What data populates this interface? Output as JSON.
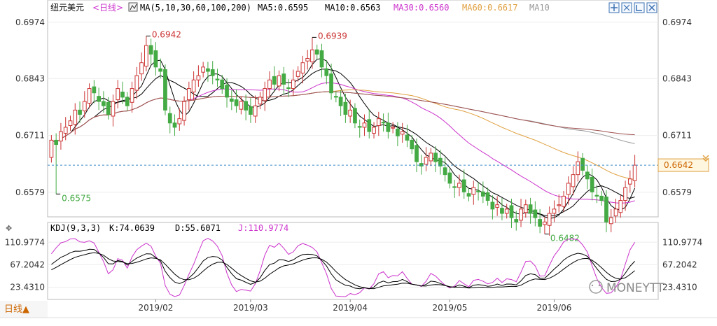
{
  "header": {
    "instrument": "纽元美元",
    "period": "<日线>",
    "ma_indicator": "MA(5,10,30,60,100,200)",
    "ma5": "MA5:0.6595",
    "ma10": "MA10:0.6563",
    "ma30": "MA30:0.6560",
    "ma60": "MA60:0.6617",
    "ma100": "MA10",
    "colors": {
      "ma5": "#000000",
      "ma10": "#000000",
      "ma30": "#cc33cc",
      "ma60": "#e0a040",
      "ma100": "#999999",
      "ma200": "#a05050"
    }
  },
  "toolbar": {
    "icons": [
      "move-icon",
      "zoom-in-icon",
      "zoom-out-icon",
      "close-icon"
    ]
  },
  "kdj_header": {
    "indicator": "KDJ(9,3,3)",
    "k": "K:74.0639",
    "d": "D:55.6071",
    "j": "J:110.9774"
  },
  "footer": {
    "period_button": "日线▲",
    "watermark": "MONEYTT"
  },
  "chart_data": [
    {
      "type": "candlestick",
      "ylim": [
        0.653,
        0.699
      ],
      "y_ticks_left": [
        "0.6974",
        "0.6843",
        "0.6711",
        "0.6579"
      ],
      "y_ticks_right": [
        "0.6974",
        "0.6843",
        "0.6711",
        "0.6579"
      ],
      "current_price_label": "0.6642",
      "current_price": 0.6642,
      "annotations": [
        {
          "text": "0.6942",
          "value": 0.6942,
          "bar": 20,
          "color": "#cc3333"
        },
        {
          "text": "0.6939",
          "value": 0.6939,
          "bar": 55,
          "color": "#cc3333"
        },
        {
          "text": "0.6575",
          "value": 0.6575,
          "bar": 1,
          "color": "#44aa44"
        },
        {
          "text": "0.6482",
          "value": 0.6482,
          "bar": 104,
          "color": "#44aa44"
        }
      ],
      "x_labels": [
        {
          "text": "2019/02",
          "bar": 22
        },
        {
          "text": "2019/03",
          "bar": 42
        },
        {
          "text": "2019/04",
          "bar": 63
        },
        {
          "text": "2019/05",
          "bar": 84
        },
        {
          "text": "2019/06",
          "bar": 106
        }
      ],
      "close": [
        0.67,
        0.669,
        0.672,
        0.673,
        0.6745,
        0.677,
        0.676,
        0.679,
        0.682,
        0.681,
        0.679,
        0.678,
        0.676,
        0.679,
        0.682,
        0.68,
        0.678,
        0.682,
        0.685,
        0.688,
        0.692,
        0.69,
        0.687,
        0.686,
        0.677,
        0.674,
        0.673,
        0.675,
        0.679,
        0.682,
        0.684,
        0.685,
        0.687,
        0.686,
        0.685,
        0.684,
        0.682,
        0.68,
        0.679,
        0.678,
        0.679,
        0.677,
        0.676,
        0.678,
        0.68,
        0.682,
        0.684,
        0.683,
        0.685,
        0.683,
        0.682,
        0.684,
        0.686,
        0.688,
        0.689,
        0.691,
        0.69,
        0.687,
        0.685,
        0.681,
        0.68,
        0.678,
        0.676,
        0.677,
        0.674,
        0.673,
        0.674,
        0.672,
        0.673,
        0.675,
        0.674,
        0.672,
        0.673,
        0.671,
        0.672,
        0.67,
        0.668,
        0.665,
        0.664,
        0.666,
        0.667,
        0.665,
        0.664,
        0.662,
        0.66,
        0.659,
        0.66,
        0.658,
        0.657,
        0.659,
        0.658,
        0.657,
        0.656,
        0.654,
        0.655,
        0.653,
        0.654,
        0.652,
        0.651,
        0.654,
        0.655,
        0.653,
        0.652,
        0.65,
        0.651,
        0.653,
        0.654,
        0.655,
        0.657,
        0.66,
        0.662,
        0.665,
        0.663,
        0.661,
        0.658,
        0.657,
        0.656,
        0.651,
        0.652,
        0.654,
        0.656,
        0.659,
        0.661,
        0.6642
      ]
    },
    {
      "type": "line",
      "indicator": "KDJ(9,3,3)",
      "ylim": [
        5,
        125
      ],
      "y_ticks": [
        "110.9774",
        "67.2042",
        "23.4310"
      ],
      "series": [
        {
          "name": "K",
          "color": "#000000"
        },
        {
          "name": "D",
          "color": "#000000"
        },
        {
          "name": "J",
          "color": "#cc33cc"
        }
      ],
      "last_values": {
        "K": 74.0639,
        "D": 55.6071,
        "J": 110.9774
      }
    }
  ]
}
